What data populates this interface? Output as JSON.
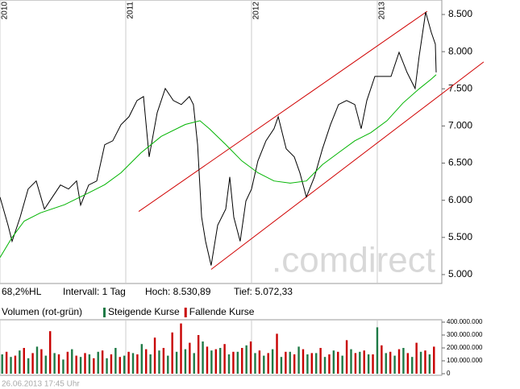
{
  "chart_data": {
    "type": "line",
    "xlim": [
      2010,
      2013.513
    ],
    "xticks": [
      2010,
      2011,
      2012,
      2013
    ],
    "ylim": [
      4880,
      8695
    ],
    "yticks": [
      {
        "value": 8500,
        "label": "8.500"
      },
      {
        "value": 8000,
        "label": "8.000"
      },
      {
        "value": 7500,
        "label": "7.500"
      },
      {
        "value": 7000,
        "label": "7.000"
      },
      {
        "value": 6500,
        "label": "6.500"
      },
      {
        "value": 6000,
        "label": "6.000"
      },
      {
        "value": 5500,
        "label": "5.500"
      },
      {
        "value": 5000,
        "label": "5.000"
      }
    ],
    "xgrid": true,
    "series": [
      {
        "color": "#000000",
        "x": [
          2010,
          2010.064,
          2010.096,
          2010.16,
          2010.224,
          2010.288,
          2010.353,
          2010.417,
          2010.481,
          2010.545,
          2010.609,
          2010.641,
          2010.705,
          2010.769,
          2010.833,
          2010.897,
          2010.962,
          2011.026,
          2011.09,
          2011.141,
          2011.186,
          2011.25,
          2011.314,
          2011.378,
          2011.442,
          2011.506,
          2011.538,
          2011.571,
          2011.603,
          2011.635,
          2011.679,
          2011.731,
          2011.795,
          2011.827,
          2011.859,
          2011.91,
          2011.955,
          2012,
          2012.051,
          2012.115,
          2012.179,
          2012.212,
          2012.276,
          2012.34,
          2012.385,
          2012.436,
          2012.5,
          2012.564,
          2012.628,
          2012.692,
          2012.756,
          2012.821,
          2012.872,
          2012.917,
          2012.981,
          2013.045,
          2013.109,
          2013.173,
          2013.237,
          2013.301,
          2013.333,
          2013.385,
          2013.429,
          2013.462,
          2013.468
        ],
        "values": [
          6043,
          5664,
          5448,
          5773,
          6151,
          6260,
          5881,
          6043,
          6206,
          6151,
          6260,
          5935,
          6206,
          6260,
          6747,
          6801,
          7017,
          7125,
          7342,
          7396,
          6584,
          7180,
          7504,
          7342,
          7288,
          7396,
          7288,
          6747,
          5773,
          5448,
          5123,
          5664,
          5881,
          6314,
          5773,
          5448,
          5989,
          6151,
          6530,
          6801,
          6963,
          7125,
          6693,
          6584,
          6368,
          6043,
          6314,
          6693,
          7017,
          7288,
          7342,
          7288,
          6963,
          7342,
          7667,
          7667,
          7667,
          7991,
          7721,
          7504,
          7937,
          8532,
          8262,
          8100,
          7721
        ]
      },
      {
        "color": "#00b400",
        "x": [
          2010,
          2010.096,
          2010.192,
          2010.321,
          2010.513,
          2010.705,
          2010.833,
          2010.962,
          2011.122,
          2011.282,
          2011.474,
          2011.59,
          2011.667,
          2011.795,
          2011.923,
          2012.051,
          2012.179,
          2012.308,
          2012.436,
          2012.564,
          2012.692,
          2012.821,
          2012.949,
          2013.077,
          2013.205,
          2013.333,
          2013.429,
          2013.468
        ],
        "values": [
          5230,
          5500,
          5720,
          5830,
          5940,
          6100,
          6210,
          6370,
          6640,
          6860,
          7020,
          7070,
          6960,
          6750,
          6530,
          6370,
          6260,
          6230,
          6260,
          6480,
          6640,
          6800,
          6910,
          7070,
          7310,
          7500,
          7630,
          7690
        ]
      }
    ],
    "trend_lines": {
      "color": "#d00000",
      "lines": [
        {
          "x": [
            2011.103,
            2013.397
          ],
          "values": [
            5849,
            8543
          ]
        },
        {
          "x": [
            2011.679,
            2013.846
          ],
          "values": [
            5070,
            7862
          ]
        }
      ]
    },
    "watermark": ".comdirect",
    "info": [
      "68,2%HL",
      "Intervall: 1 Tag",
      "Hoch:  8.530,89",
      "Tief:  5.072,33"
    ],
    "volume": {
      "title": "Volumen (rot-grün)",
      "ylim": [
        0,
        418750000
      ],
      "yticks": [
        {
          "value": 400000000,
          "label": "400.000.000"
        },
        {
          "value": 300000000,
          "label": "300.000.000"
        },
        {
          "value": 200000000,
          "label": "200.000.000"
        },
        {
          "value": 100000000,
          "label": "100.000.000"
        },
        0
      ],
      "series": [
        {
          "name": "Steigende Kurse",
          "color": "#1e7a46",
          "values": [
            150000000,
            130000000,
            180000000,
            120000000,
            210000000,
            140000000,
            160000000,
            110000000,
            190000000,
            130000000,
            150000000,
            170000000,
            120000000,
            200000000,
            140000000,
            160000000,
            230000000,
            150000000,
            180000000,
            140000000,
            170000000,
            190000000,
            160000000,
            250000000,
            180000000,
            200000000,
            150000000,
            170000000,
            220000000,
            160000000,
            140000000,
            190000000,
            130000000,
            170000000,
            210000000,
            150000000,
            160000000,
            130000000,
            180000000,
            140000000,
            190000000,
            170000000,
            150000000,
            360000000,
            160000000,
            140000000,
            200000000,
            130000000,
            170000000,
            150000000
          ]
        },
        {
          "name": "Fallende Kurse",
          "color": "#c80000",
          "values": [
            170000000,
            140000000,
            200000000,
            160000000,
            190000000,
            330000000,
            150000000,
            170000000,
            140000000,
            160000000,
            120000000,
            180000000,
            150000000,
            130000000,
            170000000,
            150000000,
            190000000,
            280000000,
            200000000,
            320000000,
            390000000,
            240000000,
            300000000,
            210000000,
            190000000,
            230000000,
            170000000,
            200000000,
            250000000,
            180000000,
            160000000,
            310000000,
            170000000,
            150000000,
            190000000,
            160000000,
            200000000,
            150000000,
            170000000,
            260000000,
            160000000,
            180000000,
            150000000,
            220000000,
            170000000,
            190000000,
            160000000,
            240000000,
            180000000,
            210000000
          ]
        }
      ]
    },
    "timestamp": "26.06.2013 17:45 Uhr"
  }
}
